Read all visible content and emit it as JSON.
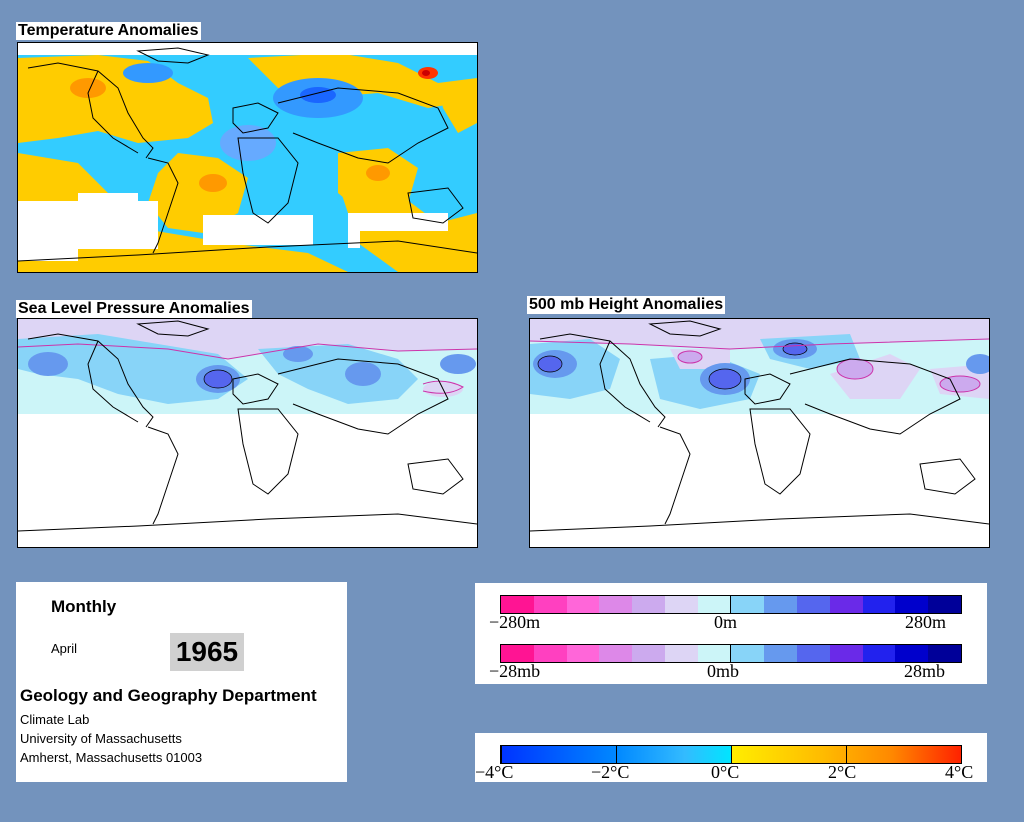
{
  "panels": {
    "temperature": {
      "title": "Temperature Anomalies"
    },
    "slp": {
      "title": "Sea Level Pressure Anomalies"
    },
    "height500": {
      "title": "500 mb Height Anomalies"
    }
  },
  "info": {
    "period": "Monthly",
    "month": "April",
    "year": "1965",
    "department": "Geology and Geography Department",
    "lab": "Climate Lab",
    "university": "University of Massachusetts",
    "address": "Amherst, Massachusetts 01003"
  },
  "legends": {
    "height": {
      "min": "−280m",
      "mid": "0m",
      "max": "280m"
    },
    "pressure": {
      "min": "−28mb",
      "mid": "0mb",
      "max": "28mb"
    },
    "temperature": {
      "labels": [
        "−4°C",
        "−2°C",
        "0°C",
        "2°C",
        "4°C"
      ]
    }
  },
  "colors": {
    "background": "#7393bd",
    "anomaly_scale": [
      "#ff1493",
      "#ff40c0",
      "#ff66d9",
      "#dd88e8",
      "#ccaaee",
      "#ddd5f5",
      "#ccf5f8",
      "#88d4f8",
      "#6699ee",
      "#5566ee",
      "#6a2ae8",
      "#2222ee",
      "#0000cc",
      "#000099"
    ],
    "temperature_scale": [
      "#0033ff",
      "#0088ff",
      "#33bbff",
      "#00e5ff",
      "#ffee00",
      "#ffbb00",
      "#ff8800",
      "#ff2200"
    ]
  }
}
